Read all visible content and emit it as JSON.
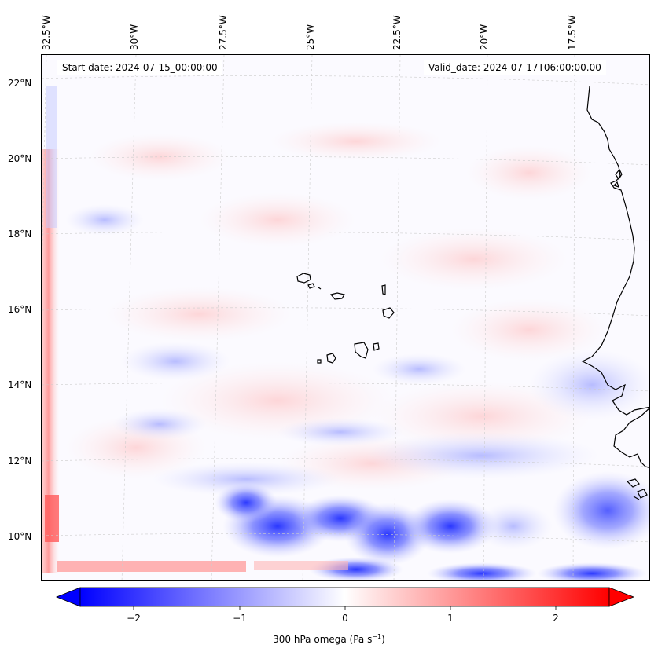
{
  "map": {
    "start_date_text": "Start date: 2024-07-15_00:00:00",
    "valid_date_text": "Valid_date: 2024-07-17T06:00:00.00",
    "longitude_labels": [
      "32.5°W",
      "30°W",
      "27.5°W",
      "25°W",
      "22.5°W",
      "20°W",
      "17.5°W"
    ],
    "latitude_labels": [
      "22°N",
      "20°N",
      "18°N",
      "16°N",
      "14°N",
      "12°N",
      "10°N"
    ],
    "gridlines": true,
    "coastline_color": "#000000"
  },
  "colorbar": {
    "label_text": "300 hPa omega (Pa s",
    "label_superscript": "−1",
    "label_close": ")",
    "ticks": [
      "−2",
      "−1",
      "0",
      "1",
      "2"
    ],
    "tick_values": [
      -2,
      -1,
      0,
      1,
      2
    ],
    "range": [
      -2.6,
      2.6
    ],
    "colormap": "bwr",
    "extend": "both",
    "min_color": "#0000ff",
    "mid_color": "#ffffff",
    "max_color": "#ff0000"
  }
}
